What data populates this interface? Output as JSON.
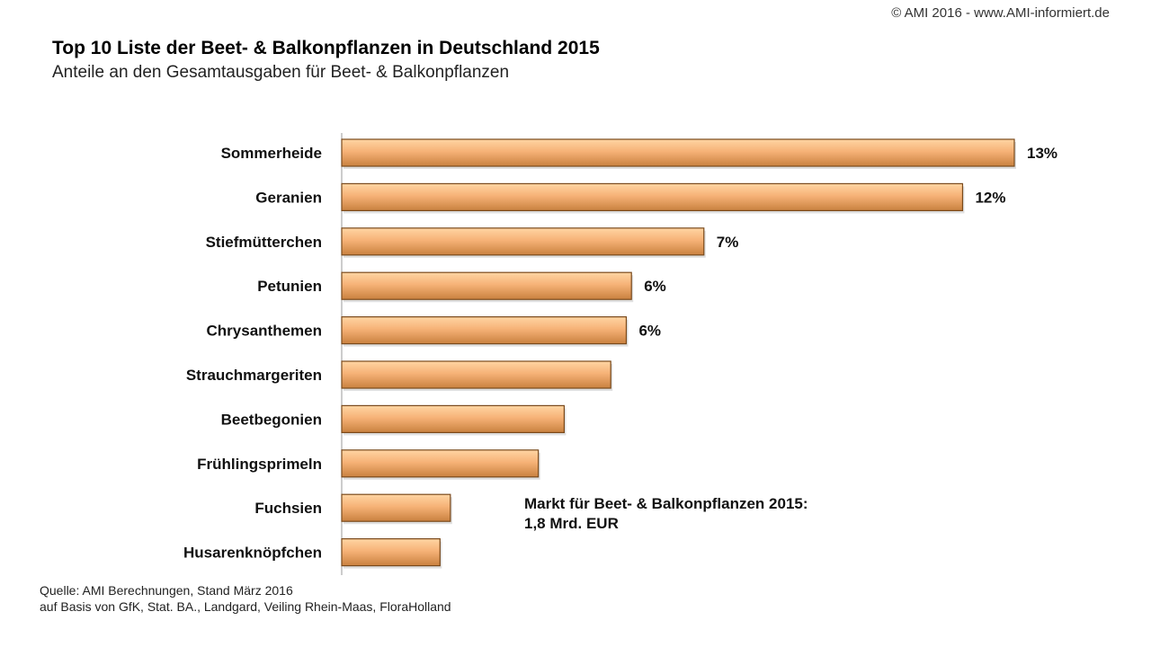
{
  "copyright": "© AMI 2016 - www.AMI-informiert.de",
  "colors": {
    "bar_fill_light": "#ffd5a3",
    "bar_fill_mid": "#f6b277",
    "bar_fill_dark": "#c9813f",
    "bar_stroke": "#7a4a1c",
    "axis": "#999999"
  },
  "chart_data": {
    "type": "bar",
    "orientation": "horizontal",
    "title": "Top 10 Liste der Beet- & Balkonpflanzen in Deutschland 2015",
    "subtitle": "Anteile an den Gesamtausgaben  für Beet- & Balkonpflanzen",
    "categories": [
      "Sommerheide",
      "Geranien",
      "Stiefmütterchen",
      "Petunien",
      "Chrysanthemen",
      "Strauchmargeriten",
      "Beetbegonien",
      "Frühlingsprimeln",
      "Fuchsien",
      "Husarenknöpfchen"
    ],
    "values": [
      13,
      12,
      7,
      5.6,
      5.5,
      5.2,
      4.3,
      3.8,
      2.1,
      1.9
    ],
    "value_labels": [
      "13%",
      "12%",
      "7%",
      "6%",
      "6%",
      "",
      "",
      "",
      "",
      ""
    ],
    "xlim": [
      0,
      13
    ],
    "grid": false,
    "legend": "none"
  },
  "note": {
    "line1": "Markt für Beet- & Balkonpflanzen 2015:",
    "line2": "1,8 Mrd. EUR"
  },
  "source": {
    "line1": "Quelle: AMI Berechnungen, Stand März 2016",
    "line2": "auf Basis von GfK, Stat. BA., Landgard, Veiling Rhein-Maas, FloraHolland"
  }
}
